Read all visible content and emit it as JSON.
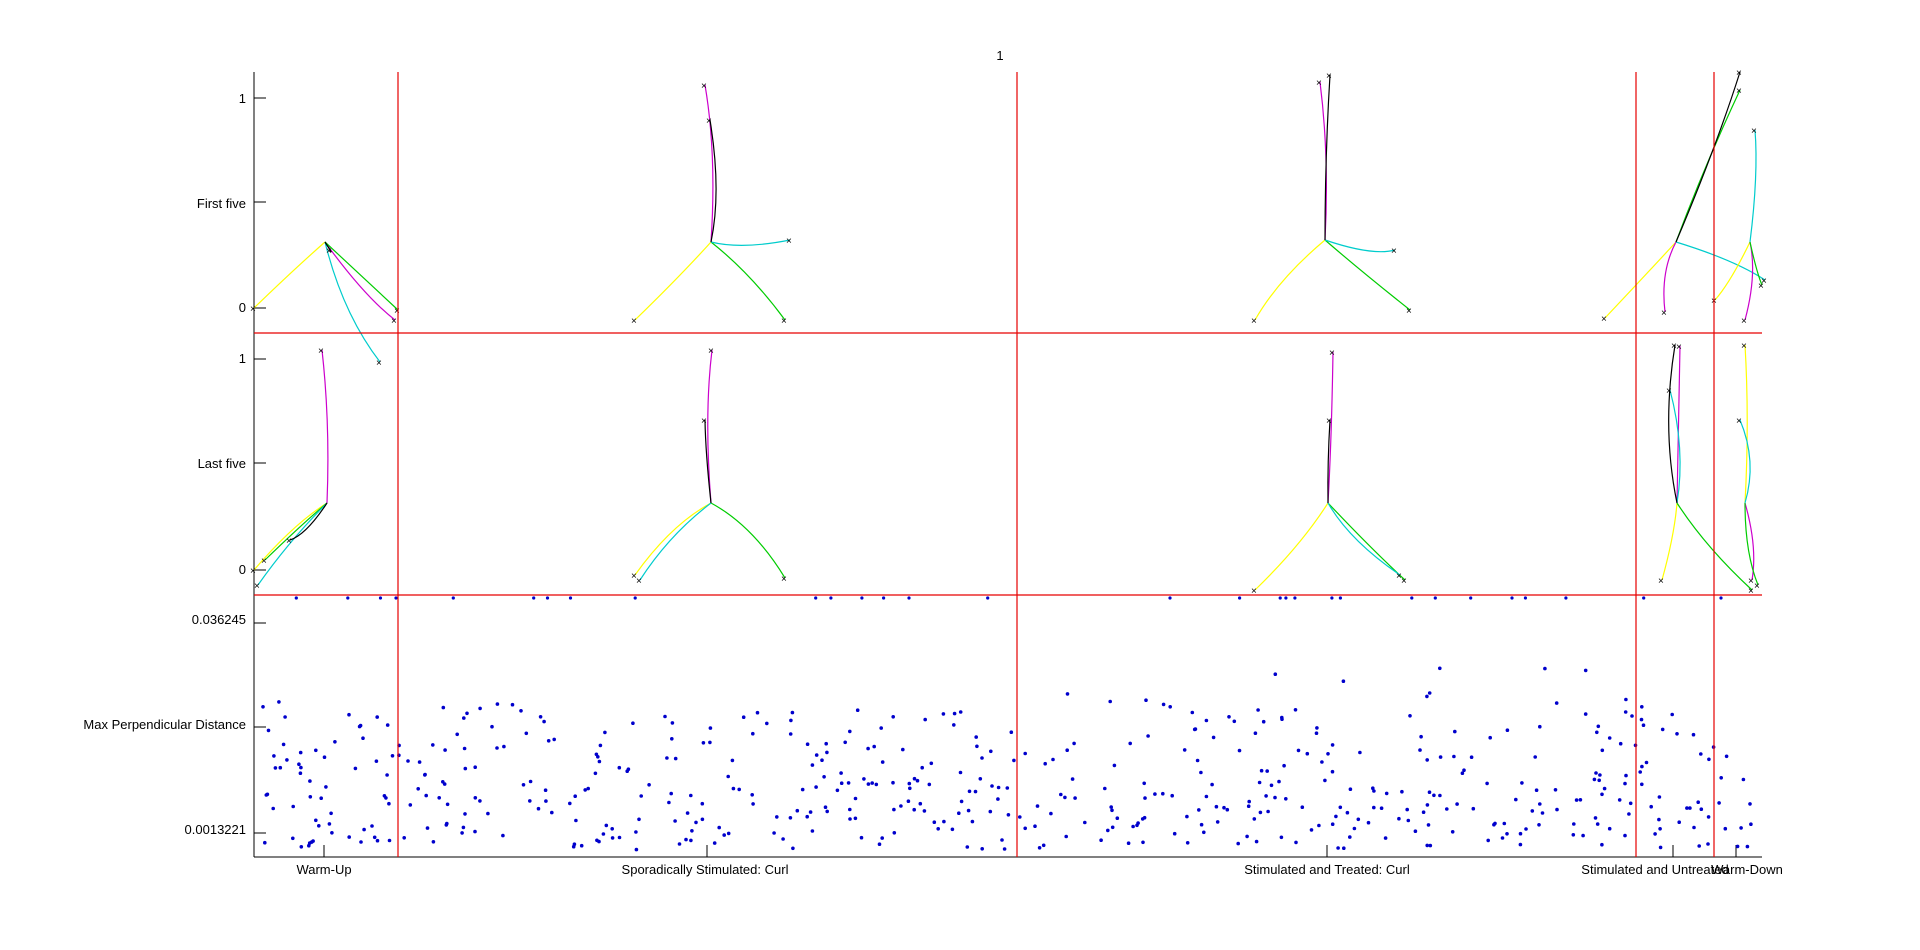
{
  "figure": {
    "title": "1"
  },
  "panels": {
    "top": {
      "ylabel": "First five",
      "yticks": [
        "0",
        "1"
      ]
    },
    "middle": {
      "ylabel": "Last five",
      "yticks": [
        "0",
        "1"
      ]
    },
    "bottom": {
      "ylabel": "Max Perpendicular Distance",
      "yticks": [
        "0.0013221",
        "0.036245"
      ]
    }
  },
  "sections": [
    {
      "label": "Warm-Up"
    },
    {
      "label": "Sporadically Stimulated: Curl"
    },
    {
      "label": "Stimulated and Treated: Curl"
    },
    {
      "label": "Stimulated and Untreated"
    },
    {
      "label": "Warm-Down"
    }
  ],
  "colors": {
    "separator": "#e60000",
    "scatter": "#0000cc",
    "traj": [
      "#ffff00",
      "#cc00cc",
      "#00cc00",
      "#00cccc",
      "#000000"
    ]
  },
  "chart_data": {
    "type": "scatter",
    "title": "1",
    "xlabel": "",
    "ylabel": "Max Perpendicular Distance",
    "ylim": [
      0.0013221,
      0.036245
    ],
    "yticks": [
      0.0013221,
      0.036245
    ],
    "x_categories": [
      "Warm-Up",
      "Sporadically Stimulated: Curl",
      "Stimulated and Treated: Curl",
      "Stimulated and Untreated",
      "Warm-Down"
    ],
    "series": [
      {
        "values": []
      }
    ]
  }
}
